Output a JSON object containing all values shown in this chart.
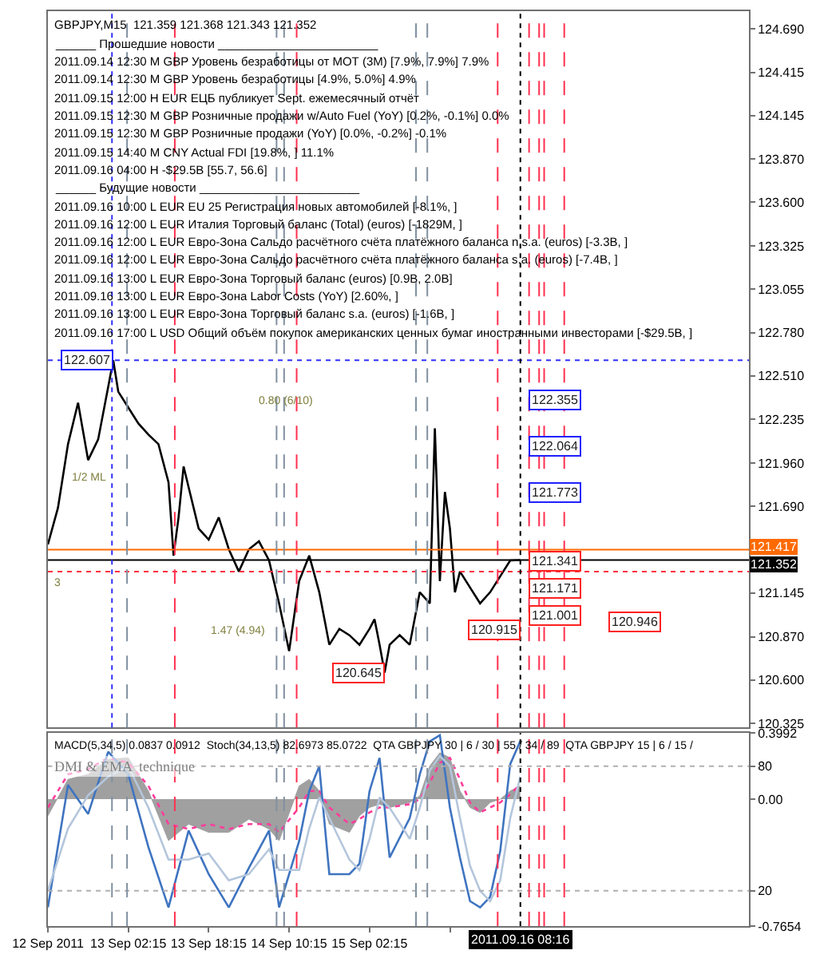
{
  "chart_data": [
    {
      "type": "line",
      "title": "GBPJPY,M15  121.359 121.368 121.343 121.352",
      "x": [
        "2011-09-12T10:15",
        "2011-09-12T12:15",
        "2011-09-12T14:15",
        "2011-09-12T16:15",
        "2011-09-12T18:15",
        "2011-09-12T20:15",
        "2011-09-12T22:15",
        "2011-09-12T23:15",
        "2011-09-13T00:15",
        "2011-09-13T02:15",
        "2011-09-13T04:15",
        "2011-09-13T06:15",
        "2011-09-13T08:15",
        "2011-09-13T10:15",
        "2011-09-13T11:15",
        "2011-09-13T12:15",
        "2011-09-13T13:15",
        "2011-09-13T14:15",
        "2011-09-13T16:15",
        "2011-09-13T18:15",
        "2011-09-13T20:15",
        "2011-09-13T22:15",
        "2011-09-14T00:15",
        "2011-09-14T02:15",
        "2011-09-14T04:15",
        "2011-09-14T06:15",
        "2011-09-14T08:15",
        "2011-09-14T10:15",
        "2011-09-14T12:15",
        "2011-09-14T14:15",
        "2011-09-14T16:15",
        "2011-09-14T18:15",
        "2011-09-14T20:15",
        "2011-09-14T22:15",
        "2011-09-15T00:15",
        "2011-09-15T02:15",
        "2011-09-15T03:15",
        "2011-09-15T04:15",
        "2011-09-15T05:15",
        "2011-09-15T06:15",
        "2011-09-15T08:15",
        "2011-09-15T10:15",
        "2011-09-15T12:15",
        "2011-09-15T14:15",
        "2011-09-15T15:15",
        "2011-09-15T16:15",
        "2011-09-15T17:15",
        "2011-09-15T18:15",
        "2011-09-15T19:15",
        "2011-09-15T20:15",
        "2011-09-15T22:15",
        "2011-09-16T00:15",
        "2011-09-16T02:15",
        "2011-09-16T04:15",
        "2011-09-16T06:15",
        "2011-09-16T08:15"
      ],
      "series": [
        {
          "color": "#000000",
          "values": [
            121.45,
            121.68,
            122.08,
            122.34,
            121.98,
            122.11,
            122.44,
            122.607,
            122.41,
            122.31,
            122.21,
            122.14,
            122.08,
            121.84,
            121.38,
            121.62,
            121.94,
            121.81,
            121.55,
            121.48,
            121.62,
            121.42,
            121.28,
            121.42,
            121.47,
            121.35,
            121.08,
            120.78,
            121.22,
            121.38,
            121.15,
            120.82,
            120.92,
            120.88,
            120.82,
            120.92,
            120.98,
            120.82,
            120.645,
            120.82,
            120.88,
            120.82,
            121.15,
            121.08,
            122.18,
            121.22,
            121.78,
            121.55,
            121.15,
            121.28,
            121.18,
            121.08,
            121.15,
            121.25,
            121.35,
            121.352
          ]
        }
      ],
      "xlim": [
        "2011-09-12T10:15",
        "2011-09-18T05:45"
      ],
      "ylim": [
        120.3,
        124.8
      ],
      "yticks": [
        {
          "value": 124.69,
          "label": "124.690"
        },
        {
          "value": 124.415,
          "label": "124.415"
        },
        {
          "value": 124.145,
          "label": "124.145"
        },
        {
          "value": 123.87,
          "label": "123.870"
        },
        {
          "value": 123.6,
          "label": "123.600"
        },
        {
          "value": 123.325,
          "label": "123.325"
        },
        {
          "value": 123.055,
          "label": "123.055"
        },
        {
          "value": 122.78,
          "label": "122.780"
        },
        {
          "value": 122.51,
          "label": "122.510"
        },
        {
          "value": 122.235,
          "label": "122.235"
        },
        {
          "value": 121.96,
          "label": "121.960"
        },
        {
          "value": 121.69,
          "label": "121.690"
        },
        {
          "value": 121.145,
          "label": "121.145"
        },
        {
          "value": 120.87,
          "label": "120.870"
        },
        {
          "value": 120.6,
          "label": "120.600"
        },
        {
          "value": 120.325,
          "label": "120.325"
        }
      ],
      "tick_labels": "y",
      "grid": false,
      "legend": false,
      "marker": "none",
      "line_style": "solid",
      "annotations": [
        "______ Прошедшие новости ________________________",
        "2011.09.14 12:30 M GBP Уровень безработицы от МОТ (3M) [7.9%, 7.9%] 7.9%",
        "2011.09.14 12:30 M GBP Уровень безработицы [4.9%, 5.0%] 4.9%",
        "2011.09.15 12:00 H EUR ЕЦБ публикует Sept. ежемесячный отчёт",
        "2011.09.15 12:30 M GBP Розничные продажи w/Auto Fuel (YoY) [0.2%, -0.1%] 0.0%",
        "2011.09.15 12:30 M GBP Розничные продажи (YoY) [0.0%, -0.2%] -0.1%",
        "2011.09.15 14:40 M CNY Actual FDI [19.8%, ] 11.1%",
        "2011.09.16 04:00 H -$29.5B [55.7, 56.6]",
        "______ Будущие новости ________________________",
        "2011.09.16 10:00 L EUR EU 25 Регистрация новых автомобилей [-8.1%, ]",
        "2011.09.16 12:00 L EUR Италия Торговый баланс (Total) (euros) [-1829M, ]",
        "2011.09.16 12:00 L EUR Евро-Зона Сальдо расчётного счёта платёжного баланса n.s.a. (euros) [-3.3B, ]",
        "2011.09.16 12:00 L EUR Евро-Зона Сальдо расчётного счёта платёжного баланса s.a. (euros) [-7.4B, ]",
        "2011.09.16 13:00 L EUR Евро-Зона Торговый баланс (euros) [0.9B, 2.0B]",
        "2011.09.16 13:00 L EUR Евро-Зона Labor Costs (YoY) [2.60%, ]",
        "2011.09.16 13:00 L EUR Евро-Зона Торговый баланс s.a. (euros) [-1.6B, ]",
        "2011.09.16 17:00 L USD Общий объём покупок американских ценных бумаг иностранными инвесторами [-$29.5B, ]",
        {
          "text": "122.607",
          "x": "2011-09-12T23:15",
          "y": 122.607
        },
        {
          "text": "120.645",
          "x": "2011-09-15T05:15",
          "y": 120.645
        },
        {
          "text": "122.355",
          "x": "2011-09-16T09:45",
          "y": 122.355
        },
        {
          "text": "122.064",
          "x": "2011-09-16T09:45",
          "y": 122.064
        },
        {
          "text": "121.773",
          "x": "2011-09-16T09:45",
          "y": 121.773
        },
        {
          "text": "121.341",
          "x": "2011-09-16T09:45",
          "y": 121.341
        },
        {
          "text": "121.171",
          "x": "2011-09-16T09:45",
          "y": 121.171
        },
        {
          "text": "121.001",
          "x": "2011-09-16T09:45",
          "y": 121.001
        },
        {
          "text": "120.915",
          "x": "2011-09-16T08:15",
          "y": 120.915
        },
        "120.946",
        "1/2 ML",
        "0.80 (6/10)",
        "1.47 (4.94)",
        "3"
      ],
      "ref_lines": [
        {
          "axis": "y",
          "value": 121.417,
          "label": "121.417",
          "color": "#ff6a00",
          "line_style": "solid"
        },
        {
          "axis": "y",
          "value": 121.352,
          "label": "121.352",
          "color": "#000000",
          "line_style": "solid"
        },
        {
          "axis": "y",
          "value": 121.28,
          "color": "#ff3040",
          "line_style": "dotted"
        },
        {
          "axis": "y",
          "value": 122.607,
          "color": "#3030ff",
          "line_style": "dotted"
        },
        {
          "axis": "x",
          "value": "2011-09-12T23:00",
          "color": "#3030ff",
          "line_style": "dotted"
        },
        {
          "axis": "x",
          "value": "2011-09-13T02:00",
          "color": "#8090a0",
          "line_style": "dashed"
        },
        {
          "axis": "x",
          "value": "2011-09-13T11:30",
          "color": "#ff3050",
          "line_style": "dashed"
        },
        {
          "axis": "x",
          "value": "2011-09-14T07:45",
          "color": "#8090a0",
          "line_style": "dashed"
        },
        {
          "axis": "x",
          "value": "2011-09-14T09:15",
          "color": "#8090a0",
          "line_style": "dashed"
        },
        {
          "axis": "x",
          "value": "2011-09-14T11:45",
          "color": "#ff3050",
          "line_style": "dashed"
        },
        {
          "axis": "x",
          "value": "2011-09-15T11:30",
          "color": "#8090a0",
          "line_style": "dashed"
        },
        {
          "axis": "x",
          "value": "2011-09-15T13:45",
          "color": "#8090a0",
          "line_style": "dashed"
        },
        {
          "axis": "x",
          "value": "2011-09-16T03:45",
          "color": "#ff3050",
          "line_style": "dashed"
        },
        {
          "axis": "x",
          "value": "2011-09-16T08:16",
          "color": "#000000",
          "line_style": "dotted"
        },
        {
          "axis": "x",
          "value": "2011-09-16T10:00",
          "color": "#ff3050",
          "line_style": "dashed"
        },
        {
          "axis": "x",
          "value": "2011-09-16T12:00",
          "color": "#ff3050",
          "line_style": "dashed"
        },
        {
          "axis": "x",
          "value": "2011-09-16T13:00",
          "color": "#ff3050",
          "line_style": "dashed"
        },
        {
          "axis": "x",
          "value": "2011-09-16T17:00",
          "color": "#ff3050",
          "line_style": "dashed"
        }
      ]
    },
    {
      "type": "line",
      "title": "MACD(5,34,5) 0.0837 0.0912  Stoch(34,13,5) 82.6973 85.0722  QTA GBPJPY 30 | 6 / 30 | 55 / 34 / 89  QTA GBPJPY 15 | 6 / 15 /",
      "x": [
        "2011-09-12T10:15",
        "2011-09-12T14:15",
        "2011-09-12T18:15",
        "2011-09-12T22:15",
        "2011-09-13T02:15",
        "2011-09-13T06:15",
        "2011-09-13T10:15",
        "2011-09-13T14:15",
        "2011-09-13T18:15",
        "2011-09-13T22:15",
        "2011-09-14T02:15",
        "2011-09-14T06:15",
        "2011-09-14T08:15",
        "2011-09-14T12:15",
        "2011-09-14T14:15",
        "2011-09-14T16:15",
        "2011-09-14T18:15",
        "2011-09-14T22:15",
        "2011-09-15T00:15",
        "2011-09-15T02:15",
        "2011-09-15T04:15",
        "2011-09-15T06:15",
        "2011-09-15T10:15",
        "2011-09-15T12:15",
        "2011-09-15T14:15",
        "2011-09-15T16:15",
        "2011-09-15T18:15",
        "2011-09-15T20:15",
        "2011-09-15T22:15",
        "2011-09-16T00:15",
        "2011-09-16T02:15",
        "2011-09-16T04:15",
        "2011-09-16T06:15",
        "2011-09-16T08:15"
      ],
      "series": [
        {
          "type": "area",
          "color": "#a0a0a0",
          "values": [
            -0.1,
            0.12,
            0.15,
            0.24,
            0.25,
            0.05,
            -0.25,
            -0.15,
            -0.2,
            -0.2,
            -0.12,
            -0.18,
            -0.25,
            0.08,
            0.12,
            0.05,
            -0.15,
            -0.2,
            -0.1,
            -0.05,
            -0.03,
            -0.05,
            -0.02,
            0.02,
            0.2,
            0.28,
            0.25,
            0.05,
            -0.05,
            -0.08,
            -0.02,
            0.0,
            0.05,
            0.08
          ]
        },
        {
          "color": "#ff3c9c",
          "line_style": "dotted",
          "values": [
            -0.05,
            0.15,
            0.18,
            0.25,
            0.22,
            0.08,
            -0.15,
            -0.18,
            -0.15,
            -0.18,
            -0.15,
            -0.15,
            -0.2,
            -0.05,
            0.05,
            0.05,
            -0.05,
            -0.15,
            -0.12,
            -0.08,
            -0.05,
            -0.05,
            -0.03,
            0.0,
            0.1,
            0.22,
            0.25,
            0.12,
            -0.02,
            -0.08,
            -0.05,
            -0.02,
            0.03,
            0.09
          ]
        },
        {
          "axis": "y2",
          "color": "#3f74c0",
          "values": [
            12,
            71,
            57,
            87,
            76,
            41,
            12,
            49,
            28,
            12,
            31,
            49,
            12,
            44,
            68,
            80,
            28,
            28,
            33,
            68,
            84,
            36,
            55,
            76,
            92,
            95,
            60,
            36,
            15,
            12,
            17,
            39,
            81,
            92
          ]
        },
        {
          "axis": "y2",
          "color": "#b4c6dc",
          "values": [
            20,
            50,
            66,
            75,
            80,
            60,
            35,
            35,
            38,
            25,
            28,
            40,
            30,
            30,
            50,
            65,
            55,
            35,
            30,
            45,
            65,
            60,
            45,
            60,
            78,
            85,
            80,
            55,
            32,
            20,
            15,
            25,
            55,
            75
          ]
        }
      ],
      "xlim": [
        "2011-09-12T10:15",
        "2011-09-18T05:45"
      ],
      "xticks": [
        {
          "value": "2011-09-12T10:15",
          "label": "12 Sep 2011"
        },
        {
          "value": "2011-09-13T02:15",
          "label": "13 Sep 02:15"
        },
        {
          "value": "2011-09-13T18:15",
          "label": "13 Sep 18:15"
        },
        {
          "value": "2011-09-14T10:15",
          "label": "14 Sep 10:15"
        },
        {
          "value": "2011-09-15T02:15",
          "label": "15 Sep 02:15"
        },
        {
          "value": "2011-09-15T18:15",
          "label": null
        }
      ],
      "ylim": [
        -0.7654,
        0.3992
      ],
      "yticks": [
        {
          "value": 0.3992,
          "label": "0.3992"
        },
        {
          "value": 0,
          "label": "0.00"
        },
        {
          "value": -0.7654,
          "label": "-0.7654"
        }
      ],
      "y2lim": [
        3,
        96
      ],
      "y2ticks": [
        80,
        20
      ],
      "grid": false,
      "legend": false,
      "marker": "none",
      "line_style": "solid",
      "annotations": [
        "DMI & EMA  technique"
      ],
      "ref_lines": [
        {
          "axis": "y2",
          "value": 80,
          "color": "#b0b0b0",
          "line_style": "dotted"
        },
        {
          "axis": "y2",
          "value": 20,
          "color": "#b0b0b0",
          "line_style": "dotted"
        },
        {
          "axis": "x",
          "value": "2011-09-12T23:00",
          "color": "#8090a0",
          "line_style": "dashed"
        },
        {
          "axis": "x",
          "value": "2011-09-13T02:00",
          "color": "#8090a0",
          "line_style": "dashed"
        },
        {
          "axis": "x",
          "value": "2011-09-13T11:30",
          "color": "#ff3050",
          "line_style": "dashed"
        },
        {
          "axis": "x",
          "value": "2011-09-14T07:45",
          "color": "#8090a0",
          "line_style": "dashed"
        },
        {
          "axis": "x",
          "value": "2011-09-14T09:15",
          "color": "#8090a0",
          "line_style": "dashed"
        },
        {
          "axis": "x",
          "value": "2011-09-14T11:45",
          "color": "#ff3050",
          "line_style": "dashed"
        },
        {
          "axis": "x",
          "value": "2011-09-15T11:30",
          "color": "#8090a0",
          "line_style": "dashed"
        },
        {
          "axis": "x",
          "value": "2011-09-15T13:45",
          "color": "#8090a0",
          "line_style": "dashed"
        },
        {
          "axis": "x",
          "value": "2011-09-16T03:45",
          "color": "#ff3050",
          "line_style": "dashed"
        },
        {
          "axis": "x",
          "value": "2011-09-16T08:16",
          "label": "2011.09.16 08:16",
          "color": "#000000",
          "line_style": "dotted"
        },
        {
          "axis": "x",
          "value": "2011-09-16T10:00",
          "color": "#ff3050",
          "line_style": "dashed"
        },
        {
          "axis": "x",
          "value": "2011-09-16T12:00",
          "color": "#ff3050",
          "line_style": "dashed"
        },
        {
          "axis": "x",
          "value": "2011-09-16T13:00",
          "color": "#ff3050",
          "line_style": "dashed"
        },
        {
          "axis": "x",
          "value": "2011-09-16T17:00",
          "color": "#ff3050",
          "line_style": "dashed"
        }
      ]
    }
  ]
}
